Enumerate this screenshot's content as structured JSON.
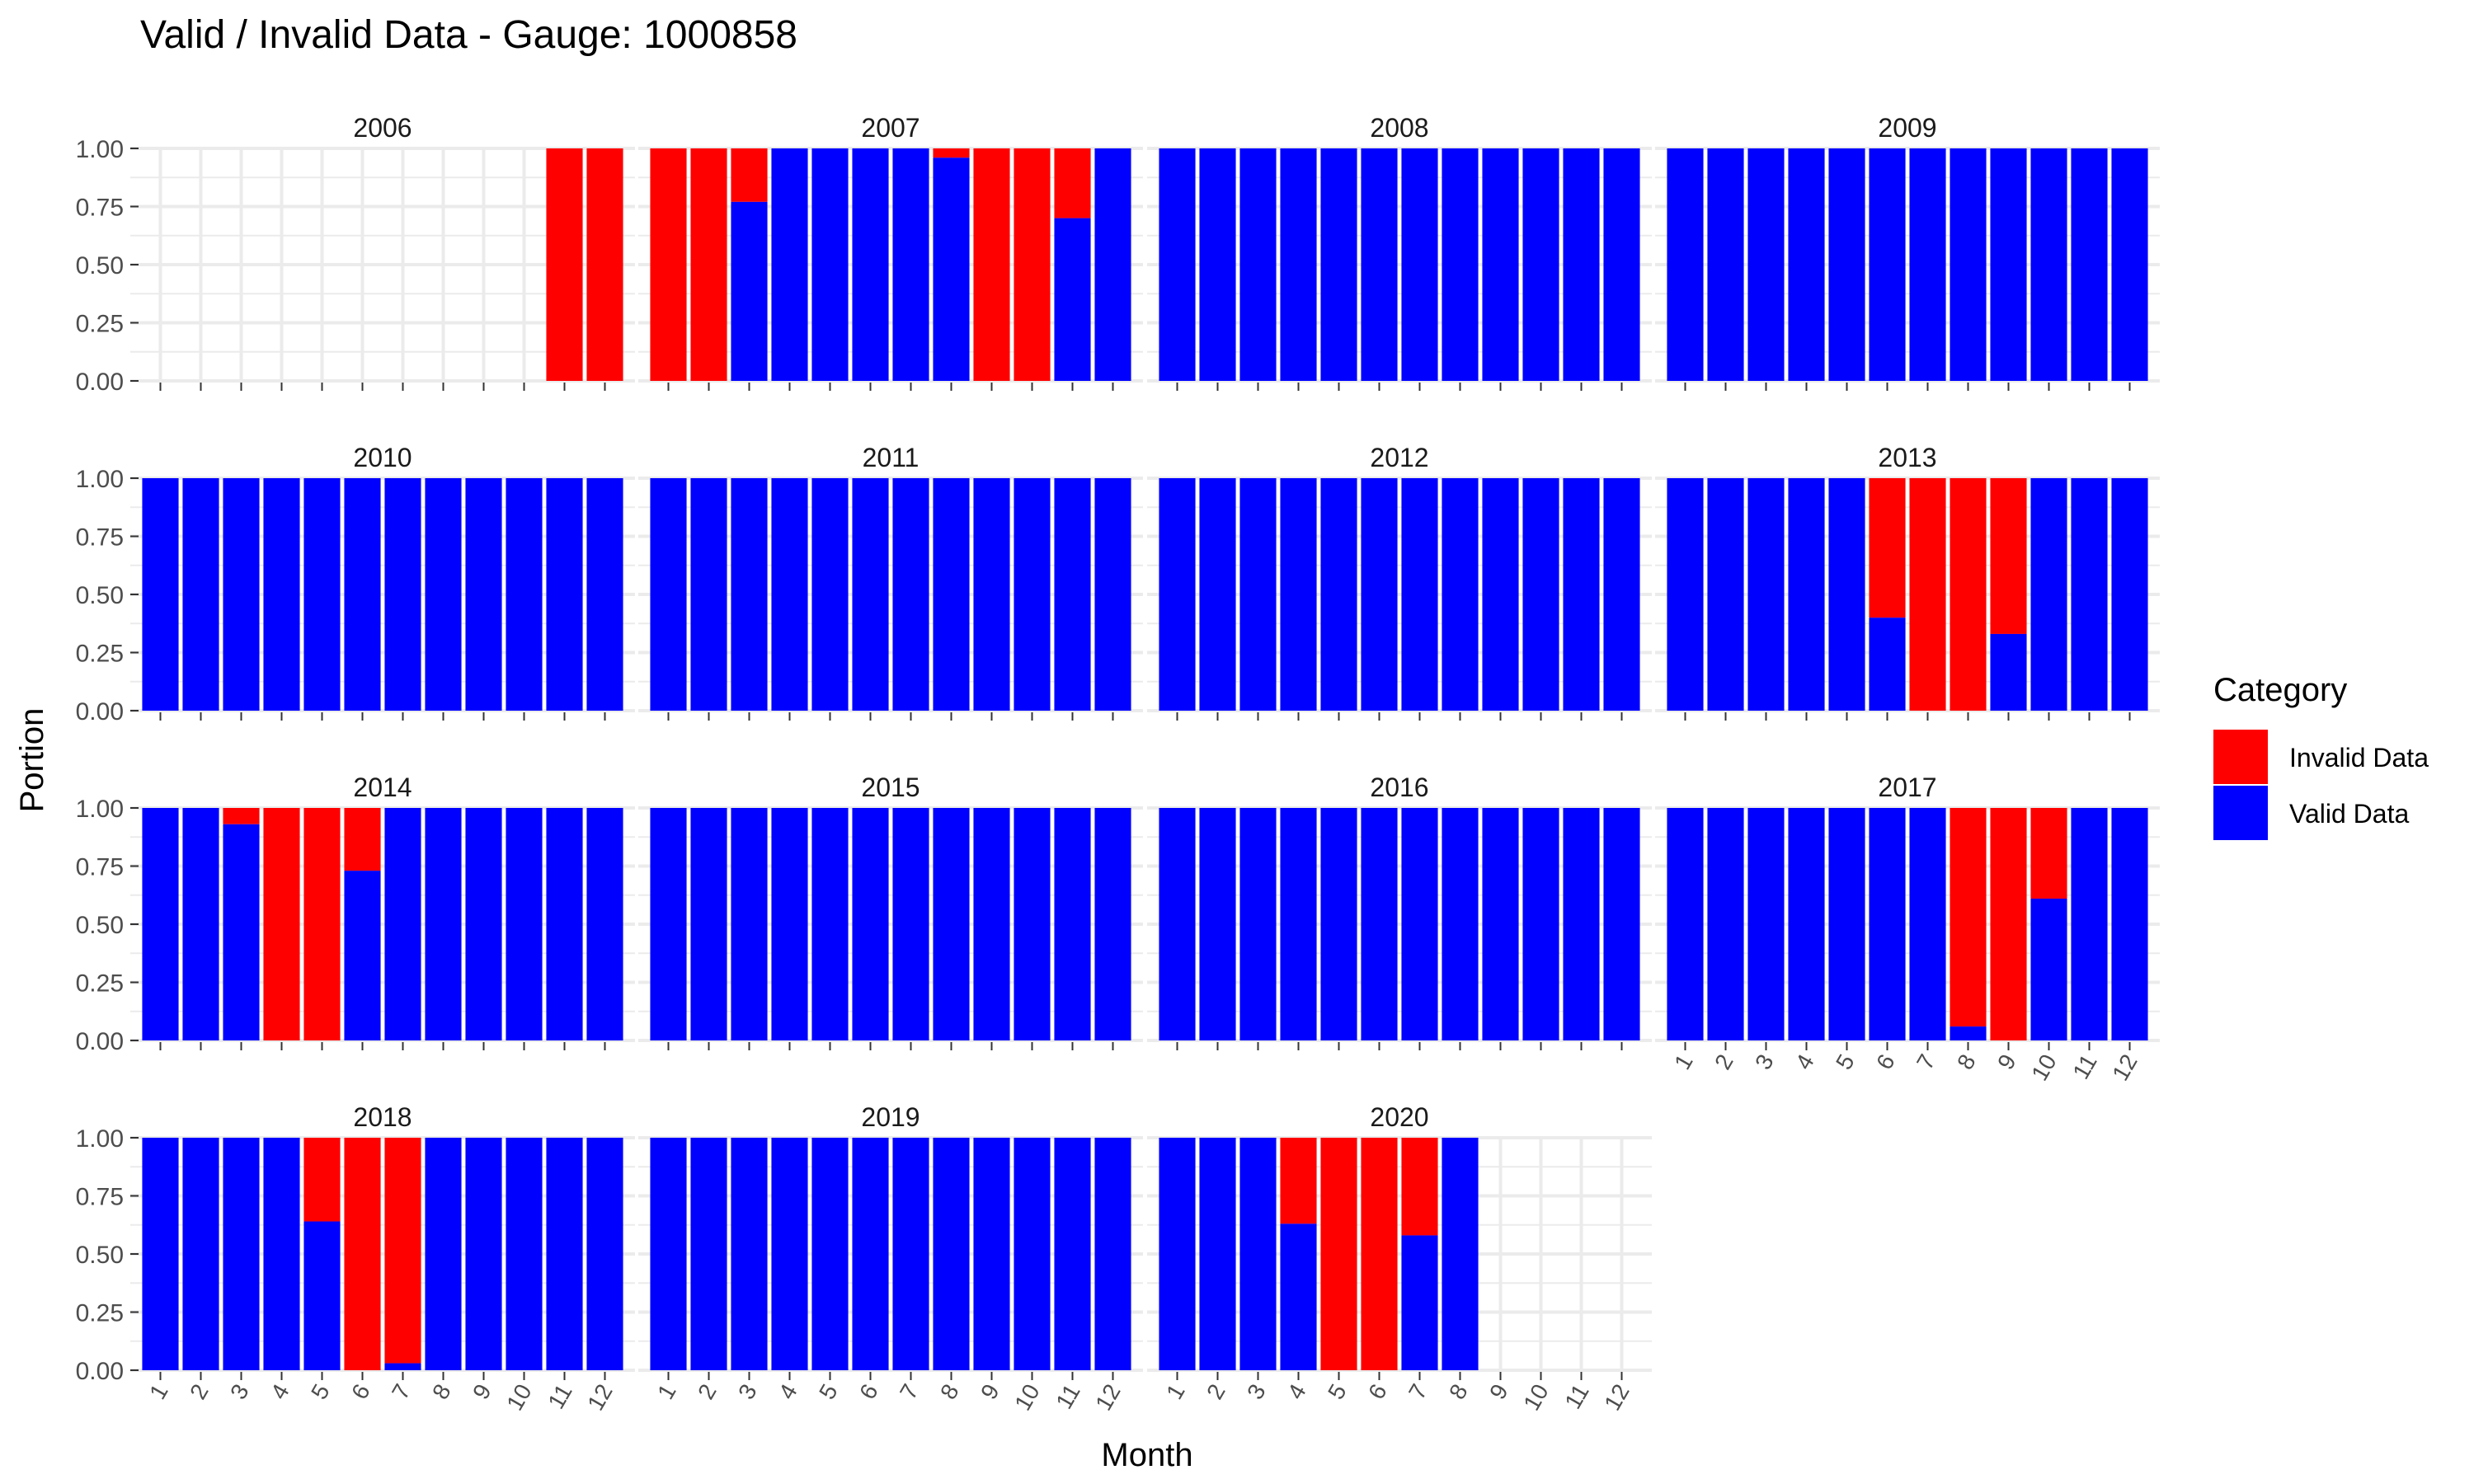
{
  "chart_data": {
    "type": "bar",
    "stacked": true,
    "faceted_by": "year",
    "title": "Valid / Invalid Data - Gauge: 1000858",
    "xlabel": "Month",
    "ylabel": "Portion",
    "ylim": [
      0,
      1
    ],
    "y_ticks": [
      "0.00",
      "0.25",
      "0.50",
      "0.75",
      "1.00"
    ],
    "categories": [
      "1",
      "2",
      "3",
      "4",
      "5",
      "6",
      "7",
      "8",
      "9",
      "10",
      "11",
      "12"
    ],
    "grid": true,
    "legend": {
      "title": "Category",
      "position": "right",
      "items": [
        {
          "label": "Invalid Data",
          "color": "#ff0000"
        },
        {
          "label": "Valid Data",
          "color": "#0000ff"
        }
      ]
    },
    "colors": {
      "invalid": "#ff0000",
      "valid": "#0000ff"
    },
    "note": "valid values give the Valid Data portion per month; null means no data for that month",
    "panels": [
      {
        "year": "2006",
        "valid": [
          null,
          null,
          null,
          null,
          null,
          null,
          null,
          null,
          null,
          null,
          0,
          0
        ]
      },
      {
        "year": "2007",
        "valid": [
          0,
          0,
          0.77,
          1,
          1,
          1,
          1,
          0.96,
          0,
          0,
          0.7,
          1
        ]
      },
      {
        "year": "2008",
        "valid": [
          1,
          1,
          1,
          1,
          1,
          1,
          1,
          1,
          1,
          1,
          1,
          1
        ]
      },
      {
        "year": "2009",
        "valid": [
          1,
          1,
          1,
          1,
          1,
          1,
          1,
          1,
          1,
          1,
          1,
          1
        ]
      },
      {
        "year": "2010",
        "valid": [
          1,
          1,
          1,
          1,
          1,
          1,
          1,
          1,
          1,
          1,
          1,
          1
        ]
      },
      {
        "year": "2011",
        "valid": [
          1,
          1,
          1,
          1,
          1,
          1,
          1,
          1,
          1,
          1,
          1,
          1
        ]
      },
      {
        "year": "2012",
        "valid": [
          1,
          1,
          1,
          1,
          1,
          1,
          1,
          1,
          1,
          1,
          1,
          1
        ]
      },
      {
        "year": "2013",
        "valid": [
          1,
          1,
          1,
          1,
          1,
          0.4,
          0,
          0,
          0.33,
          1,
          1,
          1
        ]
      },
      {
        "year": "2014",
        "valid": [
          1,
          1,
          0.93,
          0,
          0,
          0.73,
          1,
          1,
          1,
          1,
          1,
          1
        ]
      },
      {
        "year": "2015",
        "valid": [
          1,
          1,
          1,
          1,
          1,
          1,
          1,
          1,
          1,
          1,
          1,
          1
        ]
      },
      {
        "year": "2016",
        "valid": [
          1,
          1,
          1,
          1,
          1,
          1,
          1,
          1,
          1,
          1,
          1,
          1
        ]
      },
      {
        "year": "2017",
        "valid": [
          1,
          1,
          1,
          1,
          1,
          1,
          1,
          0.06,
          0,
          0.61,
          1,
          1
        ]
      },
      {
        "year": "2018",
        "valid": [
          1,
          1,
          1,
          1,
          0.64,
          0,
          0.03,
          1,
          1,
          1,
          1,
          1
        ]
      },
      {
        "year": "2019",
        "valid": [
          1,
          1,
          1,
          1,
          1,
          1,
          1,
          1,
          1,
          1,
          1,
          1
        ]
      },
      {
        "year": "2020",
        "valid": [
          1,
          1,
          1,
          0.63,
          0,
          0,
          0.58,
          1,
          null,
          null,
          null,
          null
        ]
      }
    ]
  }
}
